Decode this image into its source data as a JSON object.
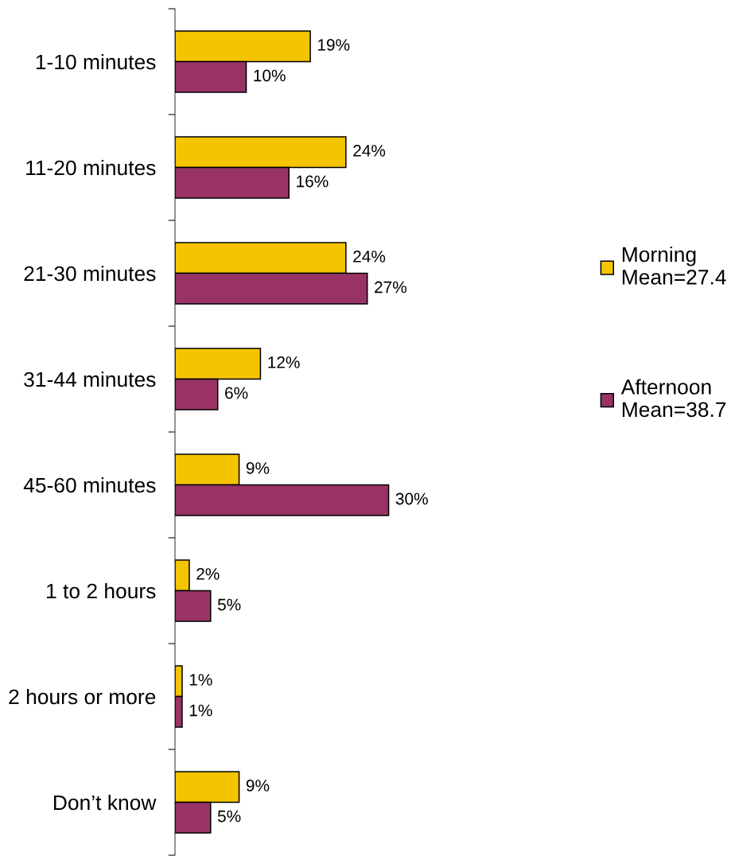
{
  "chart_data": {
    "type": "bar",
    "orientation": "horizontal",
    "tick_labels": "y",
    "legend": "right",
    "categories": [
      "1-10 minutes",
      "11-20 minutes",
      "21-30 minutes",
      "31-44 minutes",
      "45-60 minutes",
      "1 to 2 hours",
      "2 hours or more",
      "Don’t know"
    ],
    "series": [
      {
        "name": "Morning\nMean=27.4",
        "color": "#f5c400",
        "values": [
          19,
          24,
          24,
          12,
          9,
          2,
          1,
          9
        ],
        "value_labels": [
          "19%",
          "24%",
          "24%",
          "12%",
          "9%",
          "2%",
          "1%",
          "9%"
        ]
      },
      {
        "name": "Afternoon\nMean=38.7",
        "color": "#993366",
        "values": [
          10,
          16,
          27,
          6,
          30,
          5,
          1,
          5
        ],
        "value_labels": [
          "10%",
          "16%",
          "27%",
          "6%",
          "30%",
          "5%",
          "1%",
          "5%"
        ]
      }
    ]
  }
}
